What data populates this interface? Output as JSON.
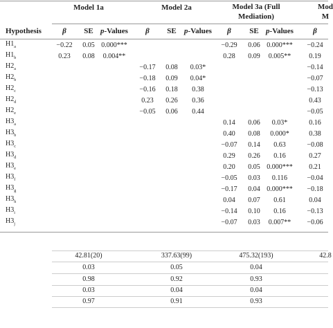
{
  "models": [
    {
      "title": [
        "Model 1a"
      ]
    },
    {
      "title": [
        "Model 2a"
      ]
    },
    {
      "title": [
        "Model 3a (Full",
        "Mediation)"
      ]
    },
    {
      "title": [
        "Mod",
        "M"
      ]
    }
  ],
  "columns": [
    "Hypothesis",
    {
      "i": "β"
    },
    "SE",
    {
      "i": "p",
      "t": "-Values"
    },
    {
      "i": "β"
    },
    "SE",
    {
      "i": "p",
      "t": "-Values"
    },
    {
      "i": "β"
    },
    "SE",
    {
      "i": "p",
      "t": "-Values"
    },
    {
      "i": "β"
    }
  ],
  "rows": [
    {
      "h": "H1",
      "s": "a",
      "cells": [
        "−0.22",
        "0.05",
        "0.000***",
        null,
        null,
        null,
        "−0.29",
        "0.06",
        "0.000***",
        "−0.24"
      ]
    },
    {
      "h": "H1",
      "s": "b",
      "cells": [
        "0.23",
        "0.08",
        "0.004**",
        null,
        null,
        null,
        "0.28",
        "0.09",
        "0.005**",
        "0.19"
      ]
    },
    {
      "h": "H2",
      "s": "a",
      "cells": [
        null,
        null,
        null,
        "−0.17",
        "0.08",
        "0.03*",
        null,
        null,
        null,
        "−0.14"
      ]
    },
    {
      "h": "H2",
      "s": "b",
      "cells": [
        null,
        null,
        null,
        "−0.18",
        "0.09",
        "0.04*",
        null,
        null,
        null,
        "−0.07"
      ]
    },
    {
      "h": "H2",
      "s": "c",
      "cells": [
        null,
        null,
        null,
        "−0.16",
        "0.18",
        "0.38",
        null,
        null,
        null,
        "−0.13"
      ]
    },
    {
      "h": "H2",
      "s": "d",
      "cells": [
        null,
        null,
        null,
        "0.23",
        "0.26",
        "0.36",
        null,
        null,
        null,
        "0.43"
      ]
    },
    {
      "h": "H2",
      "s": "e",
      "cells": [
        null,
        null,
        null,
        "−0.05",
        "0.06",
        "0.44",
        null,
        null,
        null,
        "−0.05"
      ]
    },
    {
      "h": "H3",
      "s": "a",
      "cells": [
        null,
        null,
        null,
        null,
        null,
        null,
        "0.14",
        "0.06",
        "0.03*",
        "0.16"
      ]
    },
    {
      "h": "H3",
      "s": "b",
      "cells": [
        null,
        null,
        null,
        null,
        null,
        null,
        "0.40",
        "0.08",
        "0.000*",
        "0.38"
      ]
    },
    {
      "h": "H3",
      "s": "c",
      "cells": [
        null,
        null,
        null,
        null,
        null,
        null,
        "−0.07",
        "0.14",
        "0.63",
        "−0.08"
      ]
    },
    {
      "h": "H3",
      "s": "d",
      "cells": [
        null,
        null,
        null,
        null,
        null,
        null,
        "0.29",
        "0.26",
        "0.16",
        "0.27"
      ]
    },
    {
      "h": "H3",
      "s": "e",
      "cells": [
        null,
        null,
        null,
        null,
        null,
        null,
        "0.20",
        "0.05",
        "0.000***",
        "0.21"
      ]
    },
    {
      "h": "H3",
      "s": "f",
      "cells": [
        null,
        null,
        null,
        null,
        null,
        null,
        "−0.05",
        "0.03",
        "0.116",
        "−0.04"
      ]
    },
    {
      "h": "H3",
      "s": "g",
      "cells": [
        null,
        null,
        null,
        null,
        null,
        null,
        "−0.17",
        "0.04",
        "0.000***",
        "−0.18"
      ]
    },
    {
      "h": "H3",
      "s": "h",
      "cells": [
        null,
        null,
        null,
        null,
        null,
        null,
        "0.04",
        "0.07",
        "0.61",
        "0.04"
      ]
    },
    {
      "h": "H3",
      "s": "i",
      "cells": [
        null,
        null,
        null,
        null,
        null,
        null,
        "−0.14",
        "0.10",
        "0.16",
        "−0.13"
      ]
    },
    {
      "h": "H3",
      "s": "j",
      "cells": [
        null,
        null,
        null,
        null,
        null,
        null,
        "−0.07",
        "0.03",
        "0.007**",
        "−0.06"
      ]
    }
  ],
  "fit": [
    [
      "42.81(20)",
      "337.63(99)",
      "475.32(193)",
      "42.8"
    ],
    [
      "0.03",
      "0.05",
      "0.04"
    ],
    [
      "0.98",
      "0.92",
      "0.93"
    ],
    [
      "0.03",
      "0.04",
      "0.04"
    ],
    [
      "0.97",
      "0.91",
      "0.93"
    ]
  ]
}
